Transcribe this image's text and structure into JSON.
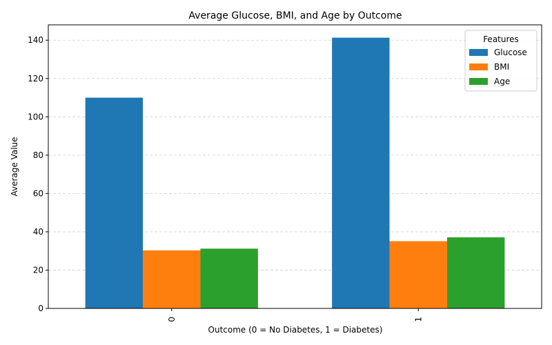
{
  "chart_data": {
    "type": "bar",
    "title": "Average Glucose, BMI, and Age by Outcome",
    "xlabel": "Outcome (0 = No Diabetes, 1 = Diabetes)",
    "ylabel": "Average Value",
    "categories": [
      "0",
      "1"
    ],
    "series": [
      {
        "name": "Glucose",
        "color": "#1f77b4",
        "values": [
          110.0,
          141.3
        ]
      },
      {
        "name": "BMI",
        "color": "#ff7f0e",
        "values": [
          30.3,
          35.1
        ]
      },
      {
        "name": "Age",
        "color": "#2ca02c",
        "values": [
          31.2,
          37.1
        ]
      }
    ],
    "ylim": [
      0,
      148
    ],
    "yticks": [
      0,
      20,
      40,
      60,
      80,
      100,
      120,
      140
    ],
    "grid": "y-dashed",
    "legend": {
      "title": "Features",
      "placement": "top-right"
    }
  }
}
